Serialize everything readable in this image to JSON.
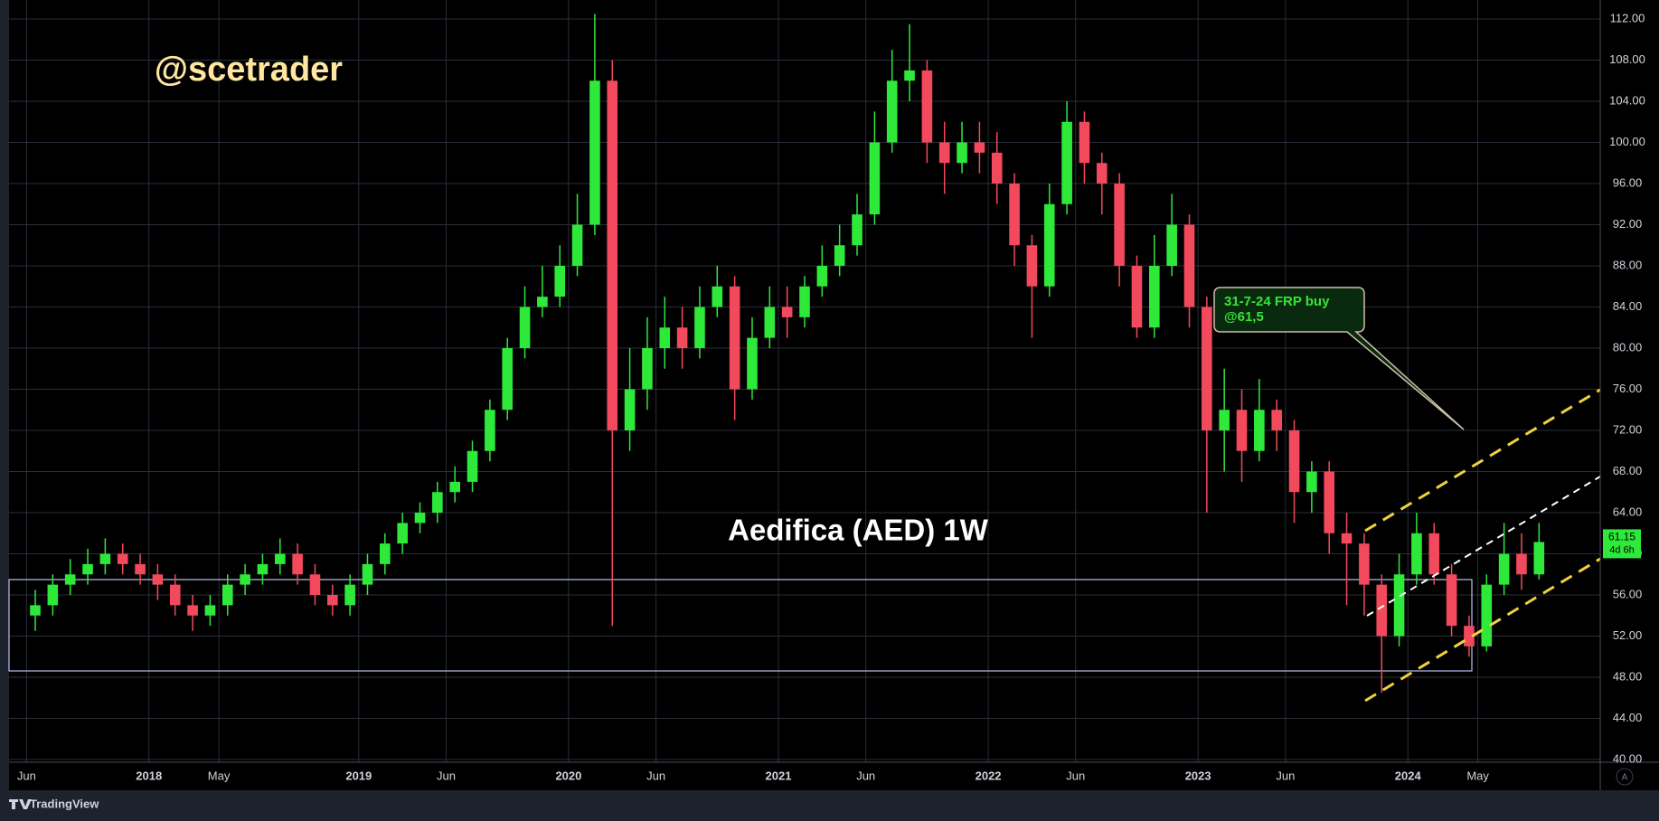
{
  "chart_data": {
    "type": "candlestick",
    "watermark": "@scetrader",
    "title": "Aedifica (AED) 1W",
    "callout": [
      "31-7-24 FRP buy",
      "@61,5"
    ],
    "countdown": "4d 6h",
    "auto_scale": "A",
    "brand": "TradingView",
    "up_color": "#2ee83a",
    "down_color": "#f2495c",
    "grid": true,
    "x": [
      "2017-06",
      "2017-07",
      "2017-08",
      "2017-09",
      "2017-10",
      "2017-11",
      "2017-12",
      "2018-01",
      "2018-02",
      "2018-03",
      "2018-04",
      "2018-05",
      "2018-06",
      "2018-07",
      "2018-08",
      "2018-09",
      "2018-10",
      "2018-11",
      "2018-12",
      "2019-01",
      "2019-02",
      "2019-03",
      "2019-04",
      "2019-05",
      "2019-06",
      "2019-07",
      "2019-08",
      "2019-09",
      "2019-10",
      "2019-11",
      "2019-12",
      "2020-01",
      "2020-02",
      "2020-03",
      "2020-04",
      "2020-05",
      "2020-06",
      "2020-07",
      "2020-08",
      "2020-09",
      "2020-10",
      "2020-11",
      "2020-12",
      "2021-01",
      "2021-02",
      "2021-03",
      "2021-04",
      "2021-05",
      "2021-06",
      "2021-07",
      "2021-08",
      "2021-09",
      "2021-10",
      "2021-11",
      "2021-12",
      "2022-01",
      "2022-02",
      "2022-03",
      "2022-04",
      "2022-05",
      "2022-06",
      "2022-07",
      "2022-08",
      "2022-09",
      "2022-10",
      "2022-11",
      "2022-12",
      "2023-01",
      "2023-02",
      "2023-03",
      "2023-04",
      "2023-05",
      "2023-06",
      "2023-07",
      "2023-08",
      "2023-09",
      "2023-10",
      "2023-11",
      "2023-12",
      "2024-01",
      "2024-02",
      "2024-03",
      "2024-04",
      "2024-05",
      "2024-06",
      "2024-07",
      "2024-08"
    ],
    "open": [
      54,
      55,
      57,
      58,
      59,
      60,
      59,
      58,
      57,
      55,
      54,
      55,
      57,
      58,
      59,
      60,
      58,
      56,
      55,
      57,
      59,
      61,
      63,
      64,
      66,
      67,
      70,
      74,
      80,
      84,
      85,
      88,
      92,
      106,
      72,
      76,
      80,
      82,
      80,
      84,
      86,
      76,
      81,
      84,
      83,
      86,
      88,
      90,
      93,
      100,
      106,
      107,
      100,
      98,
      100,
      99,
      96,
      90,
      86,
      94,
      102,
      98,
      96,
      88,
      82,
      88,
      92,
      84,
      72,
      74,
      70,
      74,
      72,
      66,
      68,
      62,
      61,
      57,
      52,
      58,
      62,
      58,
      53,
      51,
      57,
      60,
      58
    ],
    "high": [
      56.5,
      58,
      59.5,
      60.5,
      61.5,
      61,
      60,
      59,
      58,
      56,
      56,
      58,
      59,
      60,
      61.5,
      61,
      59,
      57,
      58,
      60,
      62,
      64,
      65,
      67,
      68.5,
      71,
      75,
      81,
      86,
      88,
      90,
      95,
      112.5,
      108,
      80,
      83,
      85,
      84,
      86,
      88,
      87,
      83,
      86,
      86,
      87,
      90,
      92,
      95,
      103,
      109,
      111.5,
      108,
      102,
      102,
      102,
      101,
      97,
      91,
      96,
      104,
      103,
      99,
      97,
      89,
      91,
      95,
      93,
      85,
      78,
      76,
      77,
      75,
      73,
      69,
      69,
      64,
      62,
      58,
      60,
      64,
      63,
      59,
      54,
      58,
      63,
      62,
      63
    ],
    "low": [
      52.5,
      54,
      56,
      57,
      58,
      58,
      57,
      55.5,
      54,
      52.5,
      53,
      54,
      56,
      57,
      58,
      57,
      55,
      54,
      54,
      56,
      58,
      60,
      62,
      63,
      65,
      66,
      69,
      73,
      79,
      83,
      84,
      87,
      91,
      53,
      70,
      74,
      78,
      78,
      79,
      83,
      73,
      75,
      80,
      81,
      82,
      85,
      87,
      89,
      92,
      99,
      104,
      98,
      95,
      97,
      97,
      94,
      88,
      81,
      85,
      93,
      96,
      93,
      86,
      81,
      81,
      87,
      82,
      64,
      68,
      67,
      69,
      70,
      63,
      64,
      60,
      55,
      54,
      46.5,
      51,
      57,
      57,
      52,
      50,
      50.5,
      56,
      56.5,
      57.5
    ],
    "close": [
      55,
      57,
      58,
      59,
      60,
      59,
      58,
      57,
      55,
      54,
      55,
      57,
      58,
      59,
      60,
      58,
      56,
      55,
      57,
      59,
      61,
      63,
      64,
      66,
      67,
      70,
      74,
      80,
      84,
      85,
      88,
      92,
      106,
      72,
      76,
      80,
      82,
      80,
      84,
      86,
      76,
      81,
      84,
      83,
      86,
      88,
      90,
      93,
      100,
      106,
      107,
      100,
      98,
      100,
      99,
      96,
      90,
      86,
      94,
      102,
      98,
      96,
      88,
      82,
      88,
      92,
      84,
      72,
      74,
      70,
      74,
      72,
      66,
      68,
      62,
      61,
      57,
      52,
      58,
      62,
      58,
      53,
      51,
      57,
      60,
      58,
      61.15
    ],
    "xlim": [
      "2017-05",
      "2024-12"
    ],
    "xticks": [
      {
        "value": "2017-06",
        "label": "Jun"
      },
      {
        "value": "2018-01",
        "label": "2018"
      },
      {
        "value": "2018-05",
        "label": "May"
      },
      {
        "value": "2019-01",
        "label": "2019"
      },
      {
        "value": "2019-06",
        "label": "Jun"
      },
      {
        "value": "2020-01",
        "label": "2020"
      },
      {
        "value": "2020-06",
        "label": "Jun"
      },
      {
        "value": "2021-01",
        "label": "2021"
      },
      {
        "value": "2021-06",
        "label": "Jun"
      },
      {
        "value": "2022-01",
        "label": "2022"
      },
      {
        "value": "2022-06",
        "label": "Jun"
      },
      {
        "value": "2023-01",
        "label": "2023"
      },
      {
        "value": "2023-06",
        "label": "Jun"
      },
      {
        "value": "2024-01",
        "label": "2024"
      },
      {
        "value": "2024-05",
        "label": "May"
      }
    ],
    "ylim": [
      40,
      112
    ],
    "yticks": [
      {
        "value": 40,
        "label": "40.00"
      },
      {
        "value": 44,
        "label": "44.00"
      },
      {
        "value": 48,
        "label": "48.00"
      },
      {
        "value": 52,
        "label": "52.00"
      },
      {
        "value": 56,
        "label": "56.00"
      },
      {
        "value": 60,
        "label": "60.00"
      },
      {
        "value": 64,
        "label": "64.00"
      },
      {
        "value": 68,
        "label": "68.00"
      },
      {
        "value": 72,
        "label": "72.00"
      },
      {
        "value": 76,
        "label": "76.00"
      },
      {
        "value": 80,
        "label": "80.00"
      },
      {
        "value": 84,
        "label": "84.00"
      },
      {
        "value": 88,
        "label": "88.00"
      },
      {
        "value": 92,
        "label": "92.00"
      },
      {
        "value": 96,
        "label": "96.00"
      },
      {
        "value": 100,
        "label": "100.00"
      },
      {
        "value": 104,
        "label": "104.00"
      },
      {
        "value": 108,
        "label": "108.00"
      },
      {
        "value": 112,
        "label": "112.00"
      }
    ]
  }
}
